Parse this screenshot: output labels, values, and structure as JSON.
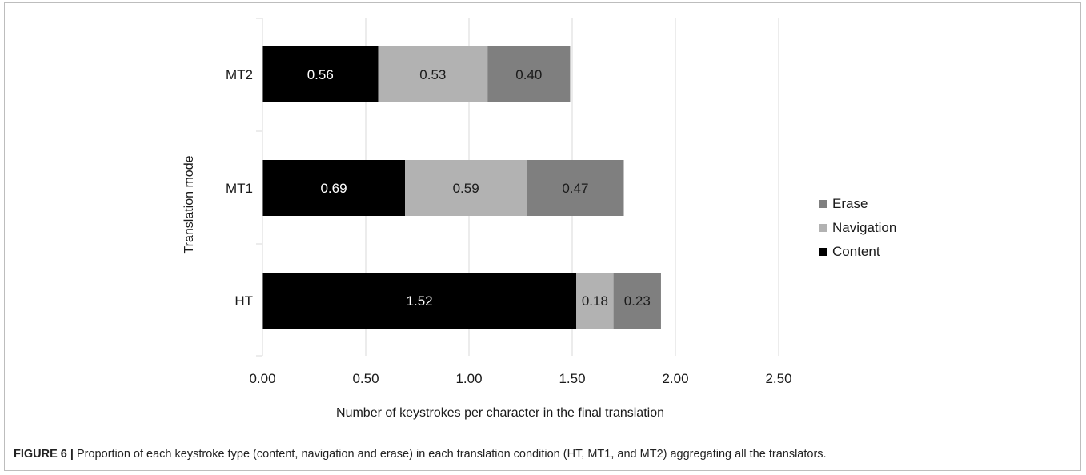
{
  "chart_data": {
    "type": "bar",
    "orientation": "horizontal",
    "stacked": true,
    "categories": [
      "HT",
      "MT1",
      "MT2"
    ],
    "series": [
      {
        "name": "Content",
        "values": [
          1.52,
          0.69,
          0.56
        ],
        "color": "#000000",
        "label_color": "#ffffff"
      },
      {
        "name": "Navigation",
        "values": [
          0.18,
          0.59,
          0.53
        ],
        "color": "#b2b2b2",
        "label_color": "#1a1a1a"
      },
      {
        "name": "Erase",
        "values": [
          0.23,
          0.47,
          0.4
        ],
        "color": "#7f7f7f",
        "label_color": "#1a1a1a"
      }
    ],
    "xlabel": "Number of keystrokes per character in the final translation",
    "ylabel": "Translation mode",
    "xlim": [
      0,
      2.5
    ],
    "xticks": [
      "0.00",
      "0.50",
      "1.00",
      "1.50",
      "2.00",
      "2.50"
    ],
    "grid": true,
    "legend_position": "right",
    "legend_order": [
      "Erase",
      "Navigation",
      "Content"
    ]
  },
  "caption": {
    "figure_label": "FIGURE 6 |",
    "text": " Proportion of each keystroke type (content, navigation and erase) in each translation condition (HT, MT1, and MT2) aggregating all the translators."
  }
}
